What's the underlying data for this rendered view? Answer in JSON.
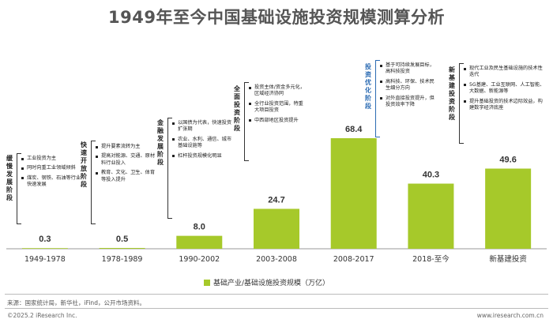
{
  "title": "1949年至今中国基础设施投资规模测算分析",
  "chart_data": {
    "type": "bar",
    "categories": [
      "1949-1978",
      "1978-1989",
      "1990-2002",
      "2003-2008",
      "2008-2017",
      "2018-至今",
      "新基建投资"
    ],
    "series": [
      {
        "name": "基础产业/基础设施投资规模（万亿）",
        "values": [
          0.3,
          0.5,
          8.0,
          24.7,
          68.4,
          40.3,
          49.6
        ]
      }
    ],
    "value_labels": [
      "0.3",
      "0.5",
      "8.0",
      "24.7",
      "68.4",
      "40.3",
      "49.6"
    ],
    "ylim": [
      0,
      80
    ],
    "legend_position": "bottom",
    "bar_color": "#a6c92a"
  },
  "stages": [
    {
      "label": "缓慢发展阶段",
      "bullets": [
        "工业投资为主",
        "同时向重工业领域倾斜",
        "煤炭、钢铁、石油等行业快速发展"
      ]
    },
    {
      "label": "快速开放阶段",
      "bullets": [
        "提升要素流转为主",
        "提高对能源、交通、原材料行业投入",
        "教育、文化、卫生、体育等投入提升"
      ]
    },
    {
      "label": "金融发展阶段",
      "bullets": [
        "以国债为代表，快速投资扩张期",
        "农业、水利、通信、城市基础设施等",
        "杠杆投资规模化明显"
      ]
    },
    {
      "label": "全面投资阶段",
      "bullets": [
        "投资主体/资金多元化，区域经济协同",
        "全行业投资范围，特重大项目投资",
        "中西部地区投资提升"
      ]
    },
    {
      "label": "投资优化阶段",
      "bullets": [
        "基于可持续发展目标，高科技投资",
        "高科技、环保、技术民生细分方向",
        "对外直接投资提升，但投资效率下降"
      ]
    },
    {
      "label": "新基建投资阶段",
      "bullets": [
        "现代工业及民生基础设施的技术性迭代",
        "5G基建、工业互联网、人工智能、大数据、新能源等",
        "提升基础投资的技术边际效益，构建数字经济底座"
      ]
    }
  ],
  "source": "来源：国家统计局，新华社，iFind，公开市场资料。",
  "footer_left": "©2025.2 iResearch Inc.",
  "footer_right": "www.iresearch.com.cn"
}
